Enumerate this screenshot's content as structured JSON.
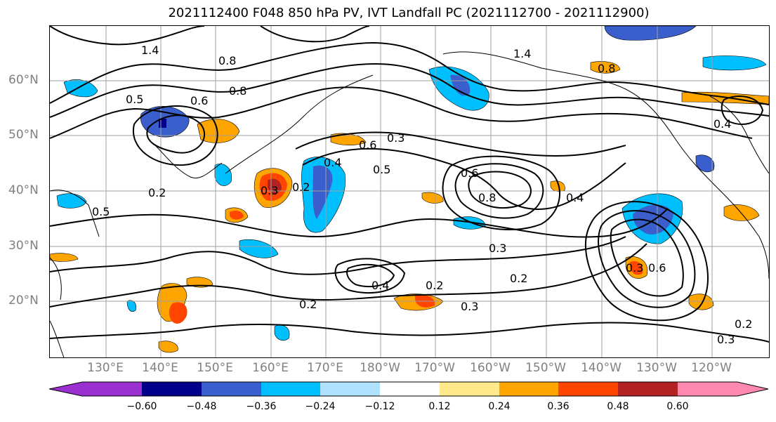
{
  "title": "2021112400 F048 850 hPa PV, IVT Landfall PC (2021112700 - 2021112900)",
  "lat_labels": [
    "60°N",
    "50°N",
    "40°N",
    "30°N",
    "20°N"
  ],
  "lon_labels": [
    "130°E",
    "140°E",
    "150°E",
    "160°E",
    "170°E",
    "180°W",
    "170°W",
    "160°W",
    "150°W",
    "140°W",
    "130°W",
    "120°W"
  ],
  "contour_labels": [
    "1.4",
    "0.8",
    "0.8",
    "0.6",
    "0.5",
    "0.2",
    "0.4",
    "0.6",
    "0.3",
    "0.3",
    "0.5",
    "0.6",
    "0.8",
    "0.4",
    "0.3",
    "0.2",
    "0.3",
    "0.2",
    "0.4",
    "0.2",
    "0.3",
    "0.2",
    "0.3",
    "0.6",
    "0.4",
    "1.4",
    "0.8",
    "0.2",
    "0.5"
  ],
  "colorbar": {
    "ticks": [
      "−0.60",
      "−0.48",
      "−0.36",
      "−0.24",
      "−0.12",
      "0.12",
      "0.24",
      "0.36",
      "0.48",
      "0.60"
    ],
    "colors": [
      "#9b30d0",
      "#00008b",
      "#3a5fcd",
      "#00bfff",
      "#b0e2ff",
      "#ffffff",
      "#ffe98a",
      "#ffa500",
      "#ff4500",
      "#b22222",
      "#ff88b0"
    ]
  },
  "colors": {
    "negative_strong": "#3a5fcd",
    "negative_mid": "#00bfff",
    "negative_weak": "#b0e2ff",
    "positive_weak": "#ffe98a",
    "positive_mid": "#ffa500",
    "positive_strong": "#ff4500",
    "positive_max": "#b22222",
    "grid": "#a0a0a0",
    "axis_text": "#808080"
  }
}
